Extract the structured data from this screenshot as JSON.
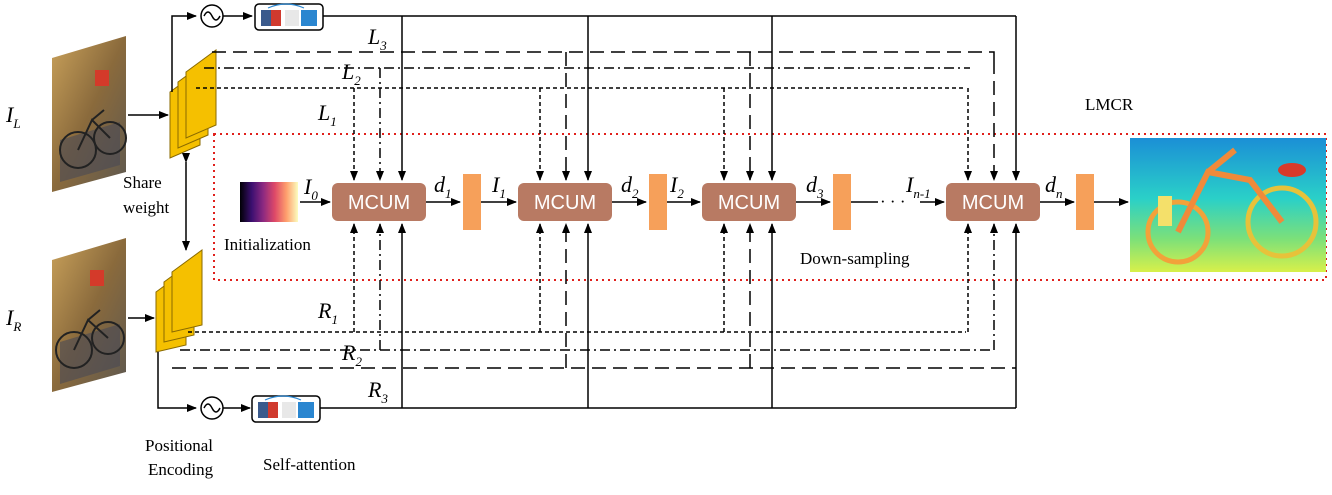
{
  "inputs": {
    "left": {
      "symbol": "I",
      "subscript": "L"
    },
    "right": {
      "symbol": "I",
      "subscript": "R"
    }
  },
  "labels": {
    "share_weight_line1": "Share",
    "share_weight_line2": "weight",
    "positional_encoding_line1": "Positional",
    "positional_encoding_line2": "Encoding",
    "self_attention": "Self-attention",
    "initialization": "Initialization",
    "down_sampling": "Down-sampling",
    "lmcr": "LMCR",
    "ellipsis": "· · ·"
  },
  "features_left": [
    {
      "symbol": "L",
      "subscript": "1"
    },
    {
      "symbol": "L",
      "subscript": "2"
    },
    {
      "symbol": "L",
      "subscript": "3"
    }
  ],
  "features_right": [
    {
      "symbol": "R",
      "subscript": "1"
    },
    {
      "symbol": "R",
      "subscript": "2"
    },
    {
      "symbol": "R",
      "subscript": "3"
    }
  ],
  "disparity_inputs": [
    {
      "symbol": "I",
      "subscript": "0"
    },
    {
      "symbol": "I",
      "subscript": "1"
    },
    {
      "symbol": "I",
      "subscript": "2"
    },
    {
      "symbol": "I",
      "subscript": "n-1"
    }
  ],
  "disparity_outputs": [
    {
      "symbol": "d",
      "subscript": "1"
    },
    {
      "symbol": "d",
      "subscript": "2"
    },
    {
      "symbol": "d",
      "subscript": "3"
    },
    {
      "symbol": "d",
      "subscript": "n"
    }
  ],
  "modules": [
    {
      "label": "MCUM"
    },
    {
      "label": "MCUM"
    },
    {
      "label": "MCUM"
    },
    {
      "label": "MCUM"
    }
  ],
  "colors": {
    "mcum_fill": "#b87a63",
    "feature_extractor": "#f5c000",
    "downsample_block": "#f6a05a",
    "lmcr_border": "#e0201c",
    "line": "#000000"
  }
}
